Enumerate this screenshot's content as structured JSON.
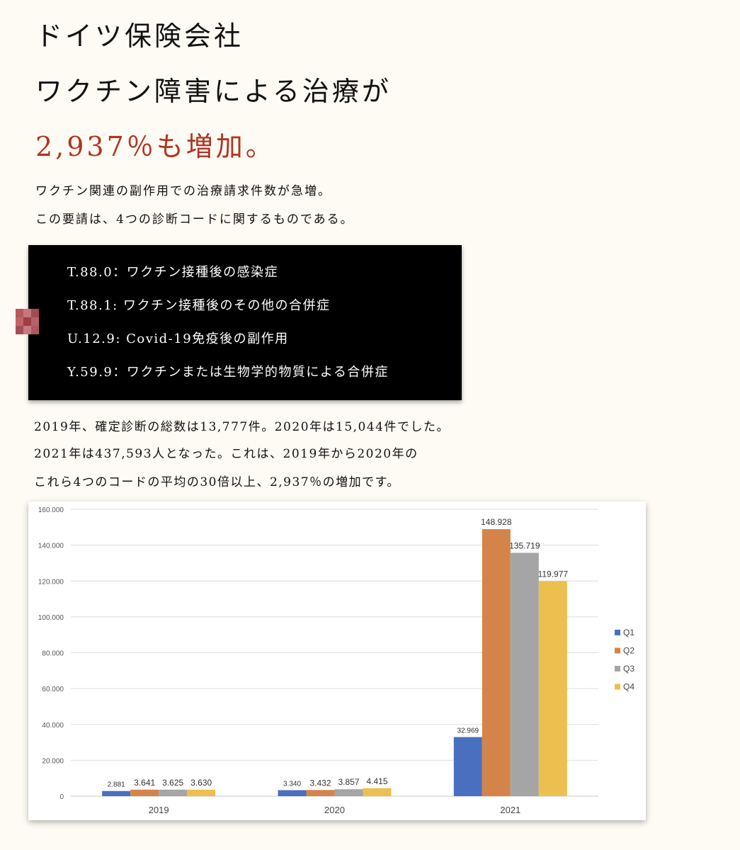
{
  "headline": {
    "line1": "ドイツ保険会社",
    "line2": "ワクチン障害による治療が",
    "line3": "2,937％も増加。"
  },
  "intro": [
    "ワクチン関連の副作用での治療請求件数が急増。",
    "この要請は、4つの診断コードに関するものである。"
  ],
  "codes": [
    "T.88.0：ワクチン接種後の感染症",
    "T.88.1: ワクチン接種後のその他の合併症",
    "U.12.9: Covid-19免疫後の副作用",
    "Y.59.9：ワクチンまたは生物学的物質による合併症"
  ],
  "body": [
    "2019年、確定診断の総数は13,777件。2020年は15,044件でした。",
    "2021年は437,593人となった。これは、2019年から2020年の",
    "これら4つのコードの平均の30倍以上、2,937％の増加です。"
  ],
  "colors": {
    "Q1": "#4a6fbf",
    "Q2": "#d4844a",
    "Q3": "#a5a5a5",
    "Q4": "#ecc04e",
    "accent": "#b03321"
  },
  "chart_data": {
    "type": "bar",
    "categories": [
      "2019",
      "2020",
      "2021"
    ],
    "series": [
      {
        "name": "Q1",
        "values": [
          2881,
          3340,
          32969
        ],
        "labels": [
          "2.881",
          "3.340",
          "32.969"
        ]
      },
      {
        "name": "Q2",
        "values": [
          3641,
          3432,
          148928
        ],
        "labels": [
          "3.641",
          "3.432",
          "148.928"
        ]
      },
      {
        "name": "Q3",
        "values": [
          3625,
          3857,
          135719
        ],
        "labels": [
          "3.625",
          "3.857",
          "135.719"
        ]
      },
      {
        "name": "Q4",
        "values": [
          3630,
          4415,
          119977
        ],
        "labels": [
          "3.630",
          "4.415",
          "119.977"
        ]
      }
    ],
    "yticks": [
      "0",
      "20.000",
      "40.000",
      "60.000",
      "80.000",
      "100.000",
      "120.000",
      "140.000",
      "160.000"
    ],
    "ylim": [
      0,
      160000
    ],
    "grid": true,
    "legend": "right",
    "title": "",
    "xlabel": "",
    "ylabel": ""
  }
}
